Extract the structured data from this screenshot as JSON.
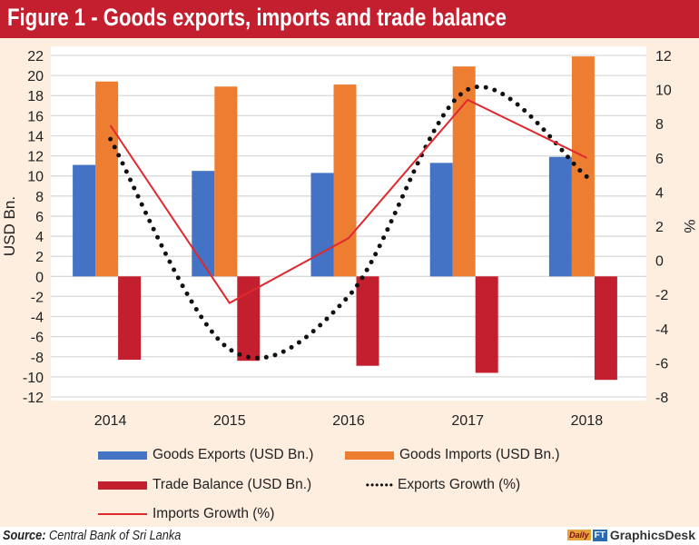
{
  "header": {
    "title": "Figure 1 - Goods exports, imports and trade balance"
  },
  "chart_data": {
    "type": "bar",
    "title": "Figure 1 - Goods exports, imports and trade balance",
    "categories": [
      "2014",
      "2015",
      "2016",
      "2017",
      "2018"
    ],
    "ylabel": "USD Bn.",
    "y2label": "%",
    "ylim": [
      -12,
      22
    ],
    "y2lim": [
      -8,
      12
    ],
    "yticks": [
      "22",
      "20",
      "18",
      "16",
      "14",
      "12",
      "10",
      "8",
      "6",
      "4",
      "2",
      "0",
      "-2",
      "-4",
      "-6",
      "-8",
      "-10",
      "-12"
    ],
    "y2ticks": [
      "12",
      "10",
      "8",
      "6",
      "4",
      "2",
      "0",
      "-2",
      "-4",
      "-6",
      "-8"
    ],
    "grid": true,
    "legend_position": "bottom",
    "series": [
      {
        "name": "Goods Exports (USD Bn.)",
        "kind": "bar",
        "axis": "left",
        "color": "#4472c4",
        "values": [
          11.1,
          10.5,
          10.3,
          11.3,
          11.9
        ]
      },
      {
        "name": "Goods Imports (USD Bn.)",
        "kind": "bar",
        "axis": "left",
        "color": "#ed7d31",
        "values": [
          19.4,
          18.9,
          19.1,
          20.9,
          21.9
        ]
      },
      {
        "name": "Trade Balance (USD Bn.)",
        "kind": "bar",
        "axis": "left",
        "color": "#c41f2e",
        "values": [
          -8.3,
          -8.4,
          -8.9,
          -9.6,
          -10.3
        ]
      },
      {
        "name": "Exports Growth (%)",
        "kind": "dotted-line",
        "axis": "right",
        "color": "#111111",
        "values": [
          7.1,
          -5.2,
          -2.1,
          10.0,
          4.9
        ]
      },
      {
        "name": "Imports Growth (%)",
        "kind": "line",
        "axis": "right",
        "color": "#e0282e",
        "values": [
          7.9,
          -2.5,
          1.3,
          9.4,
          6.0
        ]
      }
    ]
  },
  "footer": {
    "source_label": "Source:",
    "source_text": "Central Bank of Sri Lanka",
    "logo_daily": "Daily",
    "logo_ft": "FT",
    "logo_text": "GraphicsDesk"
  }
}
